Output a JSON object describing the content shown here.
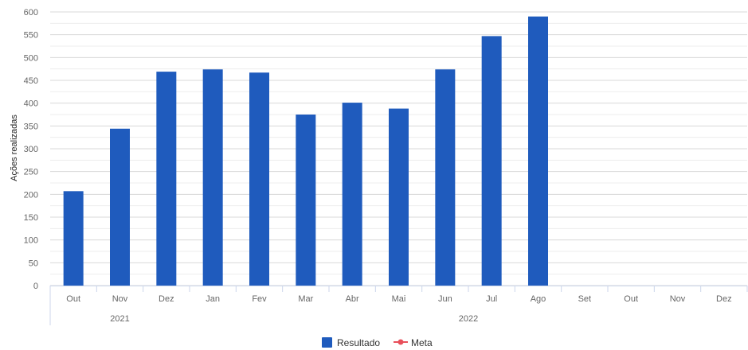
{
  "chart_data": {
    "type": "bar",
    "ylabel": "Ações realizadas",
    "ylim": [
      0,
      600
    ],
    "yticks": [
      0,
      50,
      100,
      150,
      200,
      250,
      300,
      350,
      400,
      450,
      500,
      550,
      600
    ],
    "categories": [
      "Out",
      "Nov",
      "Dez",
      "Jan",
      "Fev",
      "Mar",
      "Abr",
      "Mai",
      "Jun",
      "Jul",
      "Ago",
      "Set",
      "Out",
      "Nov",
      "Dez"
    ],
    "year_groups": [
      {
        "label": "2021",
        "start": 0,
        "end": 2
      },
      {
        "label": "2022",
        "start": 3,
        "end": 14
      }
    ],
    "series": [
      {
        "name": "Resultado",
        "type": "bar",
        "color": "#1f5bbd",
        "values": [
          207,
          344,
          469,
          474,
          467,
          375,
          401,
          388,
          474,
          547,
          590,
          null,
          null,
          null,
          null
        ]
      },
      {
        "name": "Meta",
        "type": "line",
        "color": "#e8505b",
        "values": [
          null,
          null,
          null,
          null,
          null,
          null,
          null,
          null,
          null,
          null,
          null,
          null,
          null,
          null,
          null
        ]
      }
    ],
    "grid": true,
    "legend": "bottom-center"
  }
}
